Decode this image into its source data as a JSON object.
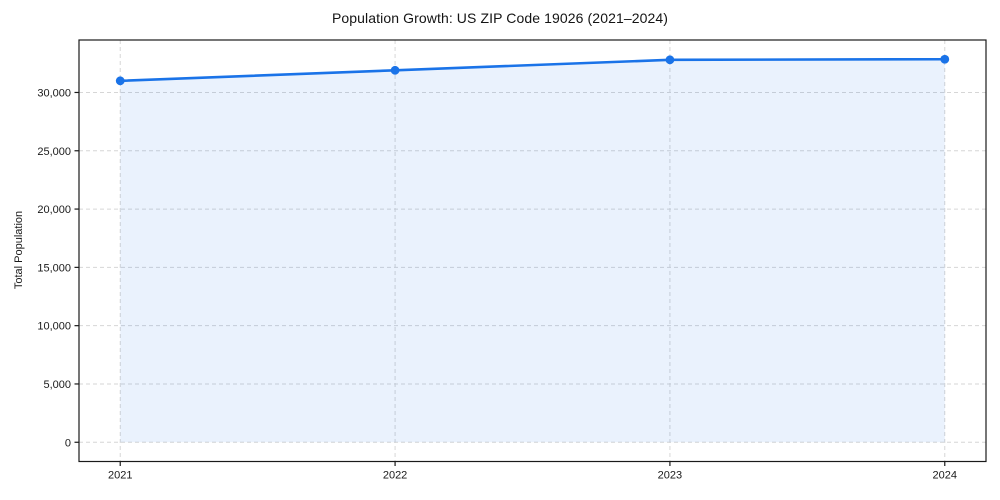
{
  "chart_data": {
    "type": "line",
    "area_fill": true,
    "title": "Population Growth: US ZIP Code 19026 (2021–2024)",
    "xlabel": "",
    "ylabel": "Total Population",
    "x": [
      2021,
      2022,
      2023,
      2024
    ],
    "x_tick_labels": [
      "2021",
      "2022",
      "2023",
      "2024"
    ],
    "series": [
      {
        "name": "Total Population",
        "values": [
          31000,
          31900,
          32800,
          32850
        ]
      }
    ],
    "y_ticks": [
      0,
      5000,
      10000,
      15000,
      20000,
      25000,
      30000
    ],
    "y_tick_labels": [
      "0",
      "5,000",
      "10,000",
      "15,000",
      "20,000",
      "25,000",
      "30,000"
    ],
    "xlim": [
      2020.85,
      2024.15
    ],
    "ylim": [
      -1650,
      34500
    ],
    "fill_baseline": 0,
    "grid": true,
    "grid_style": "dashed",
    "legend_position": "none",
    "colors": {
      "line": "#1a73e8",
      "marker": "#1a73e8",
      "fill": "#1a73e8",
      "fill_opacity": 0.09,
      "grid": "#d6d6d6",
      "spine": "#1a1a1a",
      "text": "#1a1a1a",
      "background": "#ffffff"
    }
  }
}
